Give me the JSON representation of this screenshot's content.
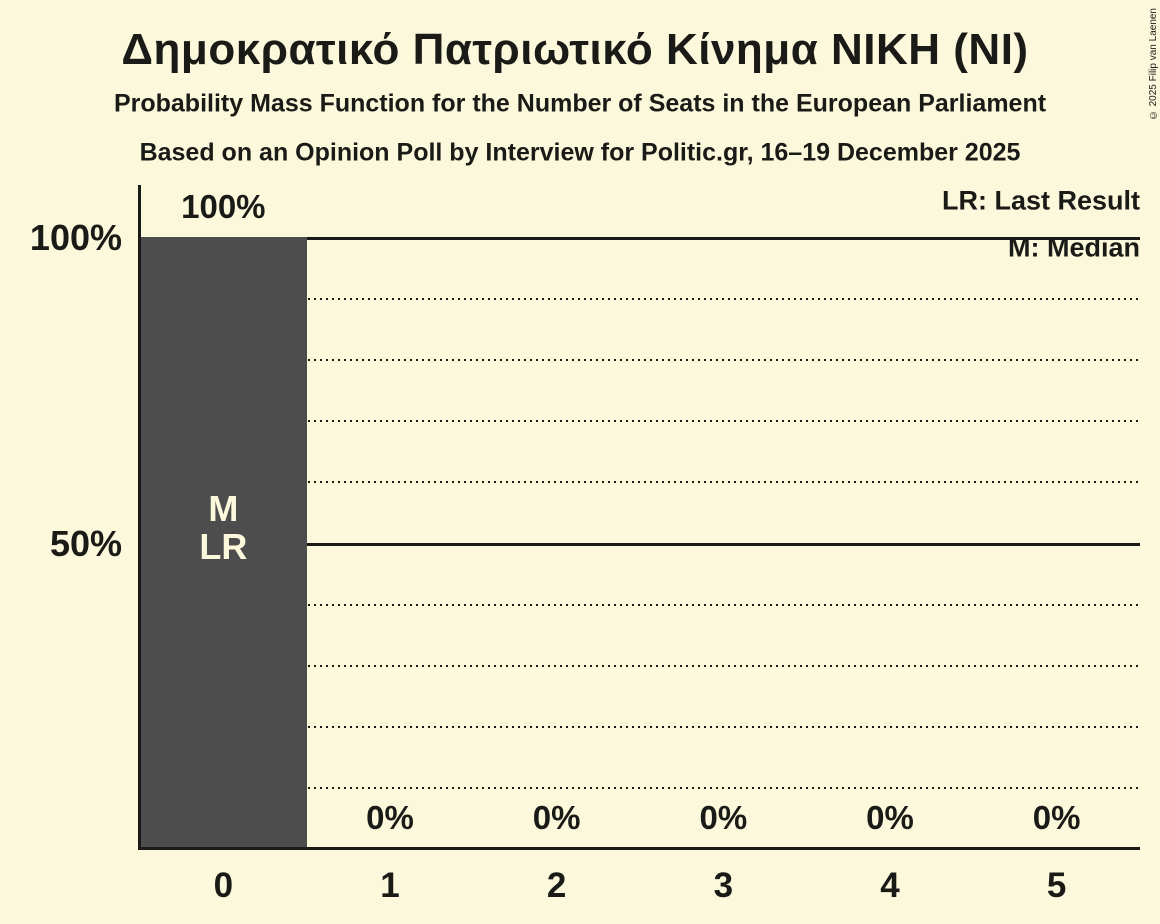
{
  "title": "Δημοκρατικό Πατριωτικό Κίνημα ΝΙΚΗ (ΝΙ)",
  "subtitles": [
    "Probability Mass Function for the Number of Seats in the European Parliament",
    "Based on an Opinion Poll by Interview for Politic.gr, 16–19 December 2025"
  ],
  "copyright": "© 2025 Filip van Laenen",
  "legend": {
    "last_result": "LR: Last Result",
    "median": "M: Median"
  },
  "colors": {
    "background": "#fcf8dc",
    "bar": "#4d4d4d",
    "text": "#1a1a17",
    "bar_annotation_text": "#fcf8dc"
  },
  "chart_data": {
    "type": "bar",
    "title": "Δημοκρατικό Πατριωτικό Κίνημα ΝΙΚΗ (ΝΙ)",
    "categories": [
      "0",
      "1",
      "2",
      "3",
      "4",
      "5"
    ],
    "values": [
      100,
      0,
      0,
      0,
      0,
      0
    ],
    "value_labels": [
      "100%",
      "0%",
      "0%",
      "0%",
      "0%",
      "0%"
    ],
    "ylim": [
      0,
      100
    ],
    "y_axis_labels": [
      {
        "value": 100,
        "label": "100%"
      },
      {
        "value": 50,
        "label": "50%"
      }
    ],
    "solid_gridlines": [
      100,
      50
    ],
    "dotted_gridlines": [
      90,
      80,
      70,
      60,
      40,
      30,
      20,
      10
    ],
    "annotations": [
      {
        "category_index": 0,
        "lines": [
          "M",
          "LR"
        ]
      }
    ],
    "median_category": "0",
    "last_result_category": "0",
    "legend_position": "top-right",
    "grid": "horizontal-only"
  }
}
